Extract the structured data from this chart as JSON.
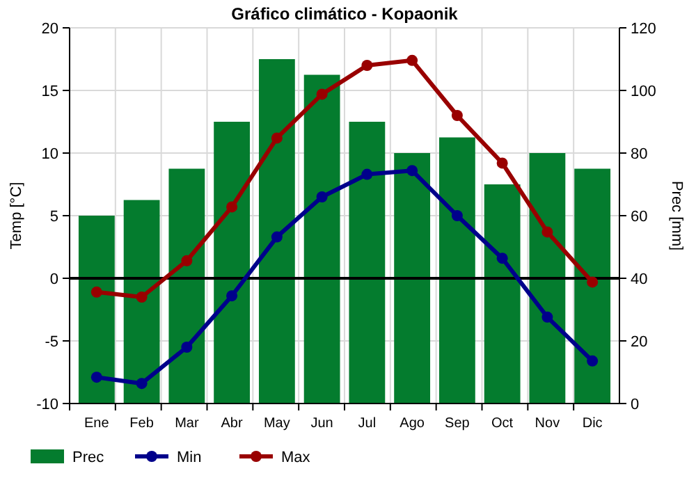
{
  "chart_data": {
    "type": "bar",
    "title": "Gráfico climático - Kopaonik",
    "ylabel": "Temp [°C]",
    "y2label": "Prec [mm]",
    "categories": [
      "Ene",
      "Feb",
      "Mar",
      "Abr",
      "May",
      "Jun",
      "Jul",
      "Ago",
      "Sep",
      "Oct",
      "Nov",
      "Dic"
    ],
    "series": [
      {
        "name": "Prec",
        "axis": "y2",
        "color": "#047c2e",
        "values": [
          60,
          65,
          75,
          90,
          110,
          105,
          90,
          80,
          85,
          70,
          80,
          75
        ]
      },
      {
        "name": "Min",
        "type": "line",
        "color": "#00008b",
        "values": [
          -7.9,
          -8.4,
          -5.5,
          -1.4,
          3.3,
          6.5,
          8.3,
          8.6,
          5.0,
          1.6,
          -3.1,
          -6.6
        ]
      },
      {
        "name": "Max",
        "type": "line",
        "color": "#990000",
        "values": [
          -1.1,
          -1.5,
          1.4,
          5.7,
          11.2,
          14.7,
          17.0,
          17.4,
          13.0,
          9.2,
          3.7,
          -0.3
        ]
      }
    ],
    "ylim": [
      -10,
      20
    ],
    "yticks": [
      -10,
      -5,
      0,
      5,
      10,
      15,
      20
    ],
    "y2lim": [
      0,
      120
    ],
    "y2ticks": [
      0,
      20,
      40,
      60,
      80,
      100,
      120
    ],
    "ref_lines": [
      {
        "axis": "y",
        "value": 0,
        "color": "#000000"
      }
    ],
    "grid": true,
    "legend": "bottom",
    "marker": "circle",
    "line_style": "solid"
  }
}
